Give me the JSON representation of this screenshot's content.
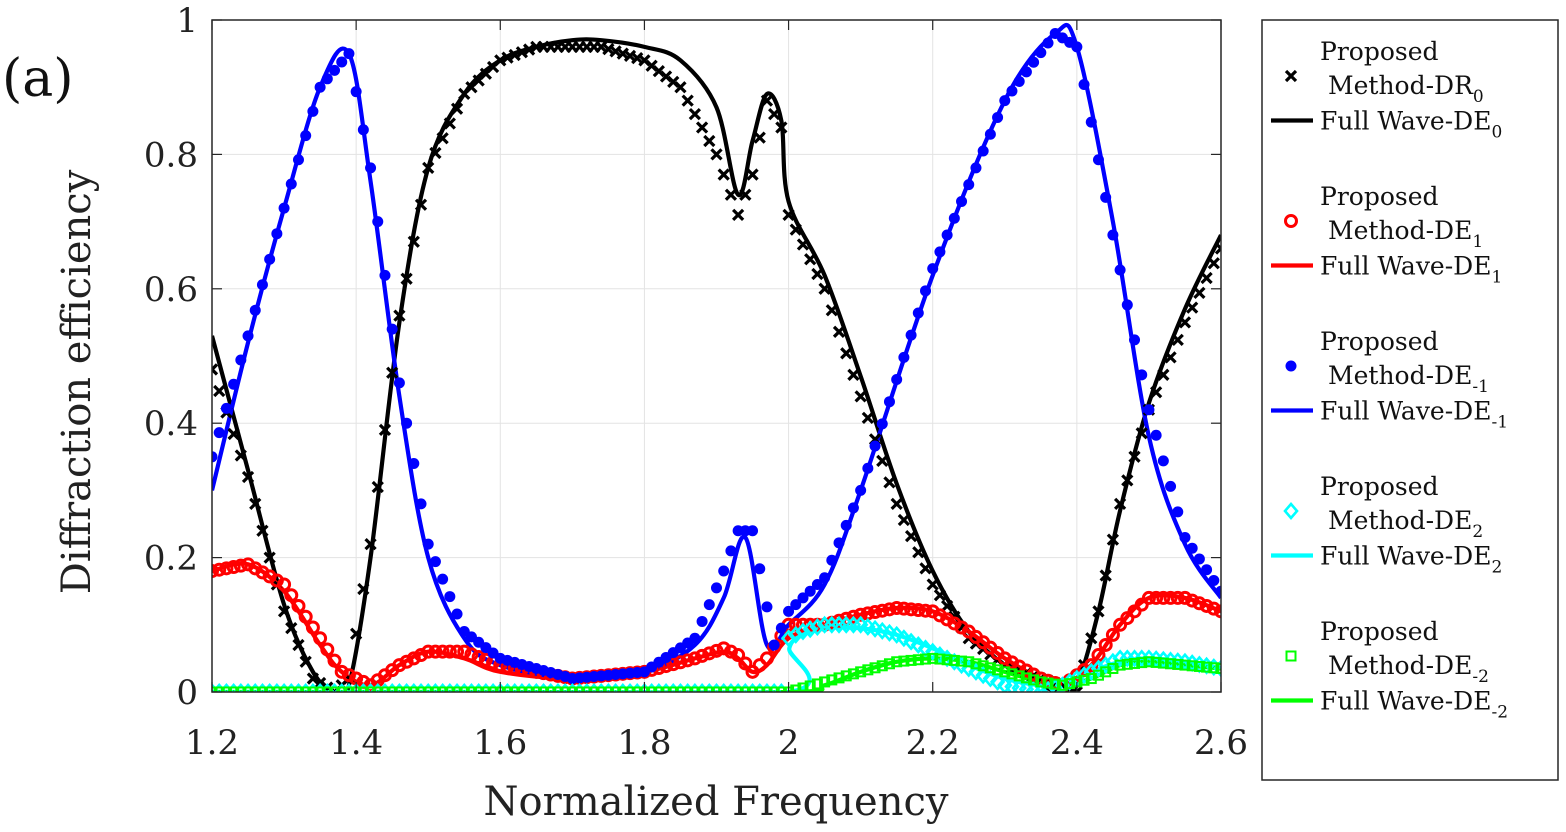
{
  "panel_label": "(a)",
  "chart_data": {
    "type": "line",
    "title": "",
    "xlabel": "Normalized Frequency",
    "ylabel": "Diffraction efficiency",
    "xlim": [
      1.2,
      2.6
    ],
    "ylim": [
      0,
      1
    ],
    "grid": true,
    "legend_position": "outside-right",
    "x_ticks": [
      1.2,
      1.4,
      1.6,
      1.8,
      2.0,
      2.2,
      2.4,
      2.6
    ],
    "x_tick_labels": [
      "1.2",
      "1.4",
      "1.6",
      "1.8",
      "2",
      "2.2",
      "2.4",
      "2.6"
    ],
    "y_ticks": [
      0,
      0.2,
      0.4,
      0.6,
      0.8,
      1
    ],
    "y_tick_labels": [
      "0",
      "0.2",
      "0.4",
      "0.6",
      "0.8",
      "1"
    ],
    "series": [
      {
        "name": "Full Wave-DE0",
        "kind": "line",
        "color": "#000000",
        "legend": [
          "Full Wave-DE",
          "0"
        ],
        "x": [
          1.2,
          1.25,
          1.3,
          1.34,
          1.37,
          1.39,
          1.42,
          1.46,
          1.5,
          1.55,
          1.6,
          1.65,
          1.7,
          1.74,
          1.8,
          1.85,
          1.9,
          1.93,
          1.95,
          1.97,
          1.99,
          2.0,
          2.05,
          2.1,
          2.15,
          2.2,
          2.25,
          2.3,
          2.35,
          2.38,
          2.4,
          2.43,
          2.46,
          2.5,
          2.55,
          2.6
        ],
        "y": [
          0.53,
          0.33,
          0.13,
          0.03,
          0.0,
          0.01,
          0.2,
          0.55,
          0.78,
          0.89,
          0.94,
          0.96,
          0.97,
          0.97,
          0.96,
          0.94,
          0.87,
          0.74,
          0.82,
          0.89,
          0.85,
          0.73,
          0.62,
          0.47,
          0.31,
          0.18,
          0.09,
          0.04,
          0.01,
          0.0,
          0.01,
          0.12,
          0.27,
          0.43,
          0.57,
          0.68
        ]
      },
      {
        "name": "Proposed Method-DR0",
        "kind": "marker",
        "marker": "x",
        "color": "#000000",
        "legend": [
          "Proposed",
          "Method-DR",
          "0"
        ],
        "x": [
          1.2,
          1.25,
          1.3,
          1.34,
          1.37,
          1.39,
          1.42,
          1.46,
          1.5,
          1.55,
          1.6,
          1.65,
          1.7,
          1.74,
          1.8,
          1.85,
          1.9,
          1.93,
          1.95,
          1.97,
          1.99,
          2.0,
          2.05,
          2.1,
          2.15,
          2.2,
          2.25,
          2.3,
          2.35,
          2.38,
          2.4,
          2.43,
          2.46,
          2.5,
          2.55,
          2.6
        ],
        "y": [
          0.48,
          0.32,
          0.12,
          0.02,
          0.0,
          0.02,
          0.22,
          0.56,
          0.78,
          0.89,
          0.94,
          0.96,
          0.96,
          0.96,
          0.94,
          0.9,
          0.8,
          0.71,
          0.77,
          0.88,
          0.84,
          0.71,
          0.6,
          0.44,
          0.28,
          0.16,
          0.08,
          0.04,
          0.02,
          0.01,
          0.0,
          0.12,
          0.28,
          0.42,
          0.55,
          0.66
        ]
      },
      {
        "name": "Full Wave-DE1",
        "kind": "line",
        "color": "#ff0000",
        "legend": [
          "Full Wave-DE",
          "1"
        ],
        "x": [
          1.2,
          1.25,
          1.3,
          1.35,
          1.38,
          1.42,
          1.46,
          1.5,
          1.55,
          1.6,
          1.7,
          1.8,
          1.87,
          1.91,
          1.93,
          1.95,
          1.97,
          2.0,
          2.05,
          2.1,
          2.15,
          2.2,
          2.25,
          2.3,
          2.35,
          2.38,
          2.42,
          2.46,
          2.5,
          2.55,
          2.6
        ],
        "y": [
          0.18,
          0.19,
          0.15,
          0.07,
          0.03,
          0.01,
          0.04,
          0.06,
          0.05,
          0.03,
          0.02,
          0.03,
          0.05,
          0.06,
          0.05,
          0.03,
          0.04,
          0.08,
          0.1,
          0.115,
          0.125,
          0.12,
          0.09,
          0.05,
          0.02,
          0.01,
          0.04,
          0.1,
          0.14,
          0.14,
          0.12
        ]
      },
      {
        "name": "Proposed Method-DE1",
        "kind": "marker",
        "marker": "circle-open",
        "color": "#ff0000",
        "legend": [
          "Proposed",
          "Method-DE",
          "1"
        ],
        "x": [
          1.2,
          1.25,
          1.3,
          1.35,
          1.38,
          1.42,
          1.46,
          1.5,
          1.55,
          1.6,
          1.7,
          1.8,
          1.87,
          1.91,
          1.93,
          1.95,
          1.97,
          2.0,
          2.05,
          2.1,
          2.15,
          2.2,
          2.25,
          2.3,
          2.35,
          2.38,
          2.42,
          2.46,
          2.5,
          2.55,
          2.6
        ],
        "y": [
          0.18,
          0.19,
          0.16,
          0.08,
          0.03,
          0.01,
          0.04,
          0.06,
          0.06,
          0.04,
          0.02,
          0.03,
          0.05,
          0.065,
          0.055,
          0.03,
          0.05,
          0.1,
          0.1,
          0.115,
          0.125,
          0.12,
          0.09,
          0.05,
          0.02,
          0.01,
          0.04,
          0.1,
          0.14,
          0.14,
          0.12
        ]
      },
      {
        "name": "Full Wave-DE-1",
        "kind": "line",
        "color": "#0000ff",
        "legend": [
          "Full Wave-DE",
          "-1"
        ],
        "x": [
          1.2,
          1.25,
          1.3,
          1.35,
          1.39,
          1.42,
          1.46,
          1.5,
          1.55,
          1.6,
          1.7,
          1.8,
          1.87,
          1.91,
          1.94,
          1.97,
          2.0,
          2.05,
          2.1,
          2.2,
          2.3,
          2.37,
          2.4,
          2.45,
          2.5,
          2.55,
          2.6
        ],
        "y": [
          0.3,
          0.52,
          0.72,
          0.9,
          0.95,
          0.76,
          0.44,
          0.2,
          0.08,
          0.04,
          0.02,
          0.03,
          0.07,
          0.14,
          0.23,
          0.07,
          0.1,
          0.16,
          0.3,
          0.62,
          0.88,
          0.98,
          0.96,
          0.7,
          0.38,
          0.22,
          0.14
        ]
      },
      {
        "name": "Proposed Method-DE-1",
        "kind": "marker",
        "marker": "dot",
        "color": "#0000ff",
        "legend": [
          "Proposed",
          "Method-DE",
          "-1"
        ],
        "x": [
          1.2,
          1.25,
          1.3,
          1.35,
          1.39,
          1.42,
          1.46,
          1.5,
          1.55,
          1.6,
          1.7,
          1.8,
          1.87,
          1.91,
          1.93,
          1.95,
          1.98,
          2.0,
          2.05,
          2.1,
          2.2,
          2.3,
          2.37,
          2.4,
          2.45,
          2.5,
          2.55,
          2.6
        ],
        "y": [
          0.35,
          0.53,
          0.72,
          0.9,
          0.95,
          0.78,
          0.46,
          0.22,
          0.09,
          0.05,
          0.02,
          0.03,
          0.08,
          0.18,
          0.24,
          0.24,
          0.07,
          0.12,
          0.17,
          0.3,
          0.63,
          0.88,
          0.98,
          0.96,
          0.68,
          0.42,
          0.23,
          0.15
        ]
      },
      {
        "name": "Full Wave-DE2",
        "kind": "line",
        "color": "#00ffff",
        "legend": [
          "Full Wave-DE",
          "2"
        ],
        "x": [
          1.2,
          1.6,
          2.0,
          2.001,
          2.02,
          2.05,
          2.1,
          2.15,
          2.2,
          2.25,
          2.3,
          2.35,
          2.38,
          2.42,
          2.46,
          2.5,
          2.55,
          2.6
        ],
        "y": [
          0.0,
          0.0,
          0.0,
          0.065,
          0.085,
          0.095,
          0.095,
          0.085,
          0.065,
          0.04,
          0.02,
          0.01,
          0.01,
          0.03,
          0.045,
          0.05,
          0.045,
          0.035
        ]
      },
      {
        "name": "Proposed Method-DE2",
        "kind": "marker",
        "marker": "diamond-open",
        "color": "#00ffff",
        "legend": [
          "Proposed",
          "Method-DE",
          "2"
        ],
        "x": [
          1.2,
          1.6,
          1.99,
          2.0,
          2.02,
          2.05,
          2.1,
          2.15,
          2.2,
          2.25,
          2.3,
          2.35,
          2.38,
          2.42,
          2.46,
          2.5,
          2.55,
          2.6
        ],
        "y": [
          0.0,
          0.0,
          0.0,
          0.08,
          0.09,
          0.1,
          0.1,
          0.085,
          0.06,
          0.035,
          0.01,
          0.0,
          0.01,
          0.03,
          0.05,
          0.05,
          0.045,
          0.035
        ]
      },
      {
        "name": "Full Wave-DE-2",
        "kind": "line",
        "color": "#00ff00",
        "legend": [
          "Full Wave-DE",
          "-2"
        ],
        "x": [
          1.2,
          1.6,
          2.0,
          2.05,
          2.1,
          2.15,
          2.2,
          2.25,
          2.3,
          2.35,
          2.38,
          2.42,
          2.46,
          2.5,
          2.55,
          2.6
        ],
        "y": [
          0.0,
          0.0,
          0.0,
          0.01,
          0.03,
          0.045,
          0.05,
          0.045,
          0.03,
          0.015,
          0.01,
          0.02,
          0.04,
          0.045,
          0.04,
          0.035
        ]
      },
      {
        "name": "Proposed Method-DE-2",
        "kind": "marker",
        "marker": "square-open",
        "color": "#00ff00",
        "legend": [
          "Proposed",
          "Method-DE",
          "-2"
        ],
        "x": [
          1.2,
          1.6,
          2.0,
          2.05,
          2.1,
          2.15,
          2.2,
          2.25,
          2.3,
          2.35,
          2.38,
          2.42,
          2.46,
          2.5,
          2.55,
          2.6
        ],
        "y": [
          0.0,
          0.0,
          0.0,
          0.015,
          0.03,
          0.045,
          0.05,
          0.045,
          0.03,
          0.015,
          0.01,
          0.02,
          0.04,
          0.045,
          0.04,
          0.035
        ]
      }
    ]
  }
}
